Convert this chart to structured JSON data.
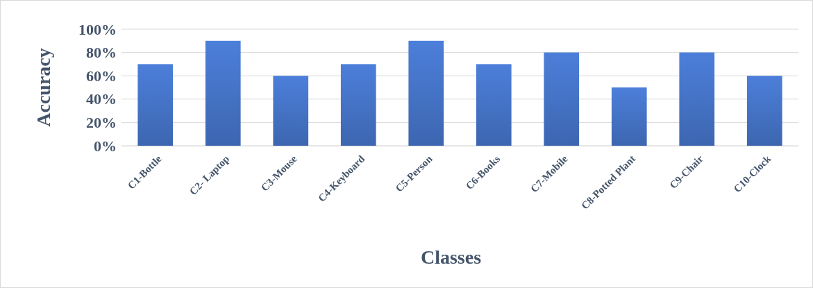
{
  "chart_data": {
    "type": "bar",
    "xlabel": "Classes",
    "ylabel": "Accuracy",
    "categories": [
      "C1-Bottle",
      "C2- Laptop",
      "C3-Mouse",
      "C4-Keyboard",
      "C5-Person",
      "C6-Books",
      "C7-Mobile",
      "C8-Potted Plant",
      "C9-Chair",
      "C10-Clock"
    ],
    "values": [
      70,
      90,
      60,
      70,
      90,
      70,
      80,
      50,
      80,
      60
    ],
    "color": "#4472c4",
    "ylim": [
      0,
      100
    ],
    "yticks": [
      {
        "value": 0,
        "label": "0%"
      },
      {
        "value": 20,
        "label": "20%"
      },
      {
        "value": 40,
        "label": "40%"
      },
      {
        "value": 60,
        "label": "60%"
      },
      {
        "value": 80,
        "label": "80%"
      },
      {
        "value": 100,
        "label": "100%"
      }
    ],
    "grid": "y"
  }
}
